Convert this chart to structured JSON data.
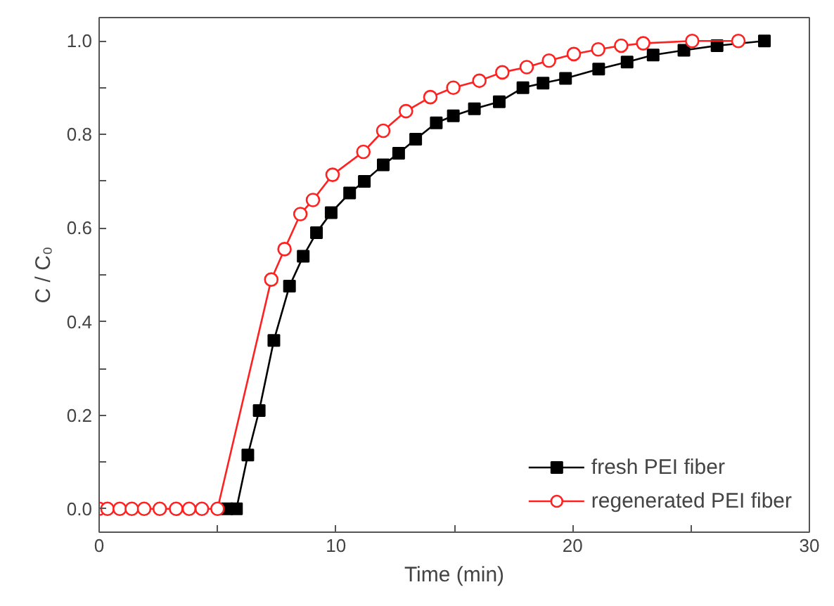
{
  "chart_data": {
    "type": "line",
    "xlabel": "Time (min)",
    "ylabel": "C / C₀",
    "xlim": [
      0,
      30
    ],
    "ylim": [
      -0.05,
      1.05
    ],
    "xticks": [
      0,
      {
        "value": 5,
        "label": null
      },
      10,
      {
        "value": 15,
        "label": null
      },
      20,
      {
        "value": 25,
        "label": null
      },
      30
    ],
    "yticks": [
      {
        "value": 0,
        "label": "0.0"
      },
      {
        "value": 0.1,
        "label": null
      },
      0.2,
      {
        "value": 0.3,
        "label": null
      },
      0.4,
      {
        "value": 0.5,
        "label": null
      },
      0.6,
      {
        "value": 0.7,
        "label": null
      },
      0.8,
      {
        "value": 0.9,
        "label": null
      },
      {
        "value": 1,
        "label": "1.0"
      }
    ],
    "legend": "bottom right",
    "grid": false,
    "series": [
      {
        "name": "fresh PEI fiber",
        "color": "#000000",
        "marker": "square",
        "x": [
          5.4,
          5.8,
          6.28,
          6.76,
          7.38,
          8.04,
          8.62,
          9.18,
          9.8,
          10.58,
          11.2,
          12.0,
          12.65,
          13.37,
          14.24,
          14.96,
          15.85,
          16.9,
          17.9,
          18.75,
          19.7,
          21.1,
          22.3,
          23.4,
          24.7,
          26.1,
          28.1
        ],
        "values": [
          0,
          0,
          0.115,
          0.21,
          0.36,
          0.476,
          0.54,
          0.59,
          0.633,
          0.675,
          0.7,
          0.735,
          0.76,
          0.79,
          0.825,
          0.84,
          0.855,
          0.87,
          0.9,
          0.91,
          0.92,
          0.94,
          0.955,
          0.97,
          0.98,
          0.99,
          1.0
        ]
      },
      {
        "name": "regenerated PEI fiber",
        "color": "#ff2020",
        "marker": "circle",
        "x": [
          0,
          0.35,
          0.87,
          1.38,
          1.9,
          2.56,
          3.25,
          3.8,
          4.34,
          5.0,
          7.27,
          7.83,
          8.5,
          9.03,
          9.86,
          11.16,
          12.0,
          12.96,
          13.99,
          14.96,
          16.06,
          17.03,
          18.06,
          19.0,
          20.05,
          21.08,
          22.05,
          22.98,
          25.05,
          27.0
        ],
        "values": [
          0,
          0,
          0,
          0,
          0,
          0,
          0,
          0,
          0,
          0,
          0.49,
          0.555,
          0.63,
          0.66,
          0.714,
          0.763,
          0.808,
          0.85,
          0.88,
          0.9,
          0.915,
          0.933,
          0.944,
          0.958,
          0.972,
          0.982,
          0.99,
          0.995,
          1.0,
          1.0
        ]
      }
    ]
  }
}
